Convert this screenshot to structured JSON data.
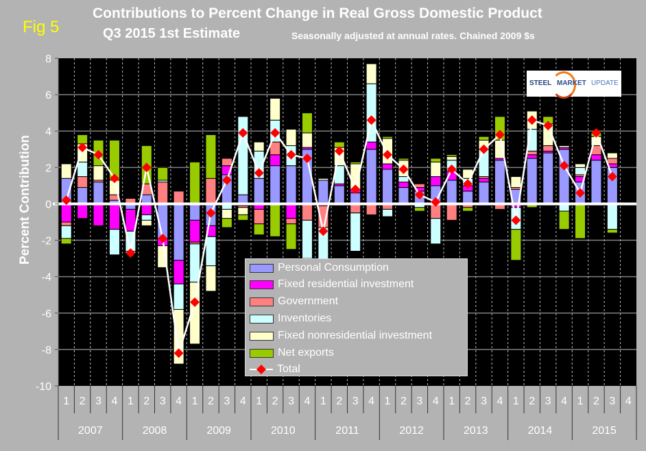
{
  "header": {
    "fig_label": "Fig 5",
    "title": "Contributions to Percent Change in Real Gross Domestic Product",
    "subtitle": "Q3 2015 1st Estimate",
    "note": "Seasonally adjusted at annual rates. Chained 2009 $s"
  },
  "logo": {
    "word1": "STEEL",
    "word2": "MARKET",
    "word3": "UPDATE"
  },
  "chart_data": {
    "type": "bar",
    "stacked": true,
    "title": "Contributions to Percent Change in Real Gross Domestic Product",
    "subtitle": "Q3 2015 1st Estimate",
    "ylabel": "Percent Contribution",
    "xlabel": "",
    "ylim": [
      -10,
      8
    ],
    "yticks": [
      8,
      6,
      4,
      2,
      0,
      -2,
      -4,
      -6,
      -8,
      -10
    ],
    "grid": true,
    "legend_position": "bottom-center",
    "years": [
      "2007",
      "2008",
      "2009",
      "2010",
      "2011",
      "2012",
      "2013",
      "2014",
      "2015"
    ],
    "quarter_labels": [
      "1",
      "2",
      "3",
      "4"
    ],
    "categories": [
      "2007Q1",
      "2007Q2",
      "2007Q3",
      "2007Q4",
      "2008Q1",
      "2008Q2",
      "2008Q3",
      "2008Q4",
      "2009Q1",
      "2009Q2",
      "2009Q3",
      "2009Q4",
      "2010Q1",
      "2010Q2",
      "2010Q3",
      "2010Q4",
      "2011Q1",
      "2011Q2",
      "2011Q3",
      "2011Q4",
      "2012Q1",
      "2012Q2",
      "2012Q3",
      "2012Q4",
      "2013Q1",
      "2013Q2",
      "2013Q3",
      "2013Q4",
      "2014Q1",
      "2014Q2",
      "2014Q3",
      "2014Q4",
      "2015Q1",
      "2015Q2",
      "2015Q3",
      "2015Q4"
    ],
    "series": [
      {
        "name": "Personal Consumption",
        "color": "#9999ff",
        "values": [
          1.4,
          0.9,
          1.2,
          0.2,
          -0.3,
          0.5,
          -1.9,
          -3.1,
          -0.9,
          -1.2,
          1.6,
          0.5,
          1.4,
          2.1,
          2.1,
          3.0,
          1.3,
          1.0,
          0.6,
          3.0,
          1.9,
          0.9,
          0.7,
          1.0,
          1.3,
          0.7,
          1.2,
          2.4,
          0.8,
          2.5,
          2.8,
          3.0,
          1.2,
          2.4,
          2.0,
          0
        ]
      },
      {
        "name": "Fixed residential investment",
        "color": "#ff00ff",
        "values": [
          -1.0,
          -0.8,
          -1.2,
          -1.4,
          -1.2,
          -0.6,
          -0.4,
          -1.3,
          -1.2,
          -0.6,
          0.5,
          -0.1,
          -0.3,
          0.6,
          -0.8,
          0.1,
          -0.1,
          0.1,
          0.2,
          0.4,
          0.3,
          0.3,
          0.2,
          0.5,
          0.5,
          0.3,
          0.2,
          0.1,
          -0.2,
          0.2,
          0.1,
          0.1,
          0.3,
          0.3,
          0.2,
          0
        ]
      },
      {
        "name": "Government",
        "color": "#ff8080",
        "values": [
          -0.2,
          0.6,
          0.1,
          0.3,
          0.3,
          0.6,
          1.2,
          0.7,
          -0.1,
          1.4,
          0.4,
          -0.1,
          -0.8,
          0.7,
          -0.3,
          -0.9,
          -1.2,
          -0.1,
          -0.5,
          -0.6,
          -0.3,
          -0.1,
          0.2,
          -0.8,
          -0.9,
          -0.2,
          0.1,
          -0.3,
          0.1,
          0.2,
          0.3,
          0.0,
          0.1,
          0.5,
          0.3,
          0
        ]
      },
      {
        "name": "Inventories",
        "color": "#ccffff",
        "values": [
          -0.7,
          0.8,
          0,
          -1.4,
          -1.1,
          -0.3,
          0.1,
          -1.4,
          -2.1,
          -1.6,
          -0.3,
          4.3,
          1.5,
          1.2,
          1.1,
          -2.1,
          -2.1,
          1.0,
          -2.1,
          3.2,
          -0.4,
          0.3,
          -0.2,
          -1.4,
          0.6,
          0.4,
          1.5,
          0,
          -1.2,
          1.2,
          0,
          -0.4,
          0.4,
          0.0,
          -1.4,
          0
        ]
      },
      {
        "name": "Fixed nonresidential investment",
        "color": "#ffffcc",
        "values": [
          0.8,
          1.0,
          0.8,
          0.8,
          -0.1,
          -0.3,
          -1.2,
          -3.0,
          -3.4,
          -1.4,
          -0.5,
          -0.4,
          0.5,
          1.2,
          0.9,
          0.8,
          0.1,
          1.0,
          1.4,
          1.1,
          1.4,
          0.9,
          0.0,
          0.8,
          0.2,
          0.5,
          0.5,
          1.0,
          0.6,
          1.0,
          1.2,
          0.1,
          0.2,
          0.5,
          0.3,
          0
        ]
      },
      {
        "name": "Net exports",
        "color": "#99cc00",
        "values": [
          -0.3,
          0.5,
          1.4,
          2.2,
          0.0,
          2.1,
          0.7,
          0.0,
          2.3,
          2.4,
          -0.5,
          -0.3,
          -0.6,
          -1.8,
          -1.4,
          1.1,
          -0.2,
          0.3,
          0.1,
          0.0,
          0.1,
          0.1,
          -0.2,
          0.2,
          0.1,
          -0.2,
          0.2,
          1.3,
          -1.7,
          -0.2,
          0.4,
          -1.0,
          -1.9,
          0.2,
          -0.2,
          0
        ]
      }
    ],
    "total": {
      "name": "Total",
      "color": "#ff0000",
      "values": [
        0.2,
        3.1,
        2.7,
        1.4,
        -2.7,
        2.0,
        -1.9,
        -8.2,
        -5.4,
        -0.5,
        1.3,
        3.9,
        1.7,
        3.9,
        2.7,
        2.5,
        -1.5,
        2.9,
        0.8,
        4.6,
        2.7,
        1.9,
        0.5,
        0.1,
        1.9,
        1.1,
        3.0,
        3.8,
        -0.9,
        4.6,
        4.3,
        2.1,
        0.6,
        3.9,
        1.5,
        null
      ]
    }
  },
  "legend": {
    "items": [
      {
        "label": "Personal Consumption",
        "color": "#9999ff"
      },
      {
        "label": "Fixed residential investment",
        "color": "#ff00ff"
      },
      {
        "label": "Government",
        "color": "#ff8080"
      },
      {
        "label": "Inventories",
        "color": "#ccffff"
      },
      {
        "label": "Fixed nonresidential investment",
        "color": "#ffffcc"
      },
      {
        "label": "Net exports",
        "color": "#99cc00"
      },
      {
        "label": "Total",
        "color": "#ff0000"
      }
    ]
  }
}
